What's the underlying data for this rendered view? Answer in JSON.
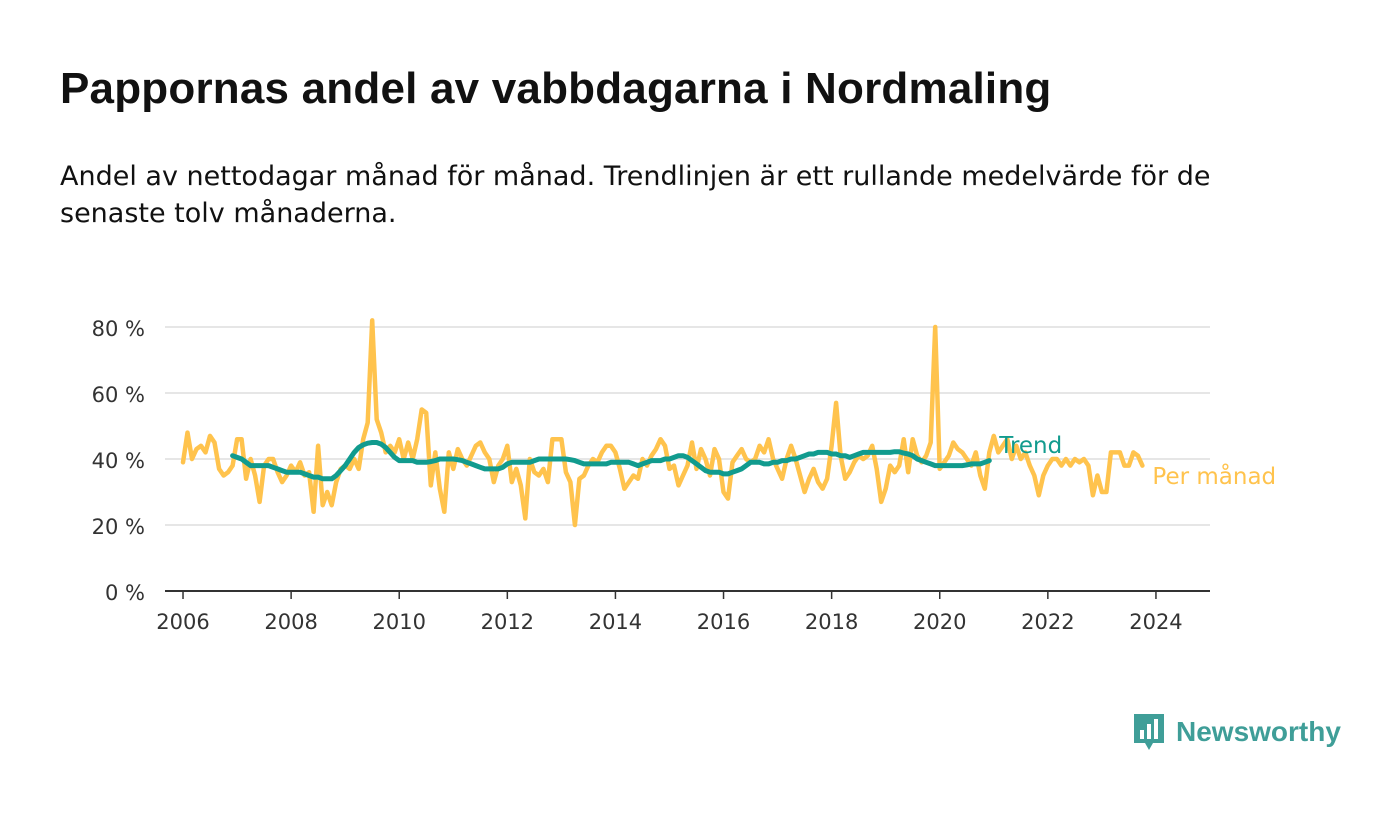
{
  "header": {
    "title": "Pappornas andel av vabbdagarna i Nordmaling",
    "subtitle": "Andel av nettodagar månad för månad. Trendlinjen är ett rullande medelvärde för de senaste tolv månaderna."
  },
  "brand": {
    "name": "Newsworthy",
    "icon": "newsworthy-logo-icon",
    "color": "#3f9e98"
  },
  "chart_data": {
    "type": "line",
    "title": "Pappornas andel av vabbdagarna i Nordmaling",
    "xlabel": "",
    "ylabel": "",
    "x_range": [
      "2005-09",
      "2025-01"
    ],
    "ylim": [
      0,
      80
    ],
    "yticks": [
      0,
      20,
      40,
      60,
      80
    ],
    "ytick_labels": [
      "0 %",
      "20 %",
      "40 %",
      "60 %",
      "80 %"
    ],
    "xticks": [
      "2006",
      "2008",
      "2010",
      "2012",
      "2014",
      "2016",
      "2018",
      "2020",
      "2022",
      "2024"
    ],
    "grid": "horizontal",
    "legend": "right-end labels",
    "series": [
      {
        "name": "Per månad",
        "color": "#ffc34d",
        "x_start": "2006-01",
        "frequency": "monthly",
        "values": [
          39,
          48,
          40,
          43,
          44,
          42,
          47,
          45,
          37,
          35,
          36,
          38,
          46,
          46,
          34,
          40,
          35,
          27,
          38,
          40,
          40,
          36,
          33,
          35,
          38,
          36,
          39,
          35,
          36,
          24,
          44,
          26,
          30,
          26,
          33,
          37,
          38,
          37,
          40,
          37,
          46,
          51,
          82,
          52,
          48,
          42,
          44,
          42,
          46,
          40,
          45,
          40,
          46,
          55,
          54,
          32,
          42,
          31,
          24,
          42,
          37,
          43,
          40,
          38,
          41,
          44,
          45,
          42,
          40,
          33,
          38,
          40,
          44,
          33,
          37,
          32,
          22,
          40,
          36,
          35,
          37,
          33,
          46,
          46,
          46,
          36,
          33,
          20,
          34,
          35,
          38,
          40,
          39,
          42,
          44,
          44,
          42,
          37,
          31,
          33,
          35,
          34,
          40,
          38,
          41,
          43,
          46,
          44,
          37,
          38,
          32,
          35,
          38,
          45,
          37,
          43,
          40,
          35,
          43,
          40,
          30,
          28,
          39,
          41,
          43,
          40,
          39,
          40,
          44,
          42,
          46,
          40,
          37,
          34,
          40,
          44,
          40,
          35,
          30,
          34,
          37,
          33,
          31,
          34,
          44,
          57,
          41,
          34,
          36,
          39,
          41,
          40,
          41,
          44,
          37,
          27,
          31,
          38,
          36,
          38,
          46,
          36,
          46,
          41,
          39,
          41,
          45,
          80,
          37,
          39,
          41,
          45,
          43,
          42,
          40,
          38,
          42,
          35,
          31,
          42,
          47,
          42,
          44,
          46,
          40,
          44,
          40,
          42,
          38,
          35,
          29,
          35,
          38,
          40,
          40,
          38,
          40,
          38,
          40,
          39,
          40,
          38,
          29,
          35,
          30,
          30,
          42,
          42,
          42,
          38,
          38,
          42,
          41,
          38
        ]
      },
      {
        "name": "Trend",
        "color": "#119b8e",
        "x_start": "2006-12",
        "frequency": "monthly",
        "values": [
          41,
          40.5,
          40,
          39,
          38,
          38,
          38,
          38,
          38,
          37.5,
          37,
          36.5,
          36,
          36,
          36,
          36,
          35.5,
          35,
          34.5,
          34.5,
          34,
          34,
          34,
          35,
          36.5,
          38,
          40,
          42,
          43.5,
          44.3,
          44.8,
          45,
          45,
          44.5,
          43.5,
          42,
          40.5,
          39.5,
          39.5,
          39.5,
          39.5,
          39,
          39,
          39,
          39.2,
          39.5,
          40,
          40,
          40,
          40,
          39.8,
          39.5,
          39,
          38.5,
          38,
          37.5,
          37,
          37,
          37,
          37,
          37.5,
          38.5,
          39,
          39,
          39,
          39,
          39,
          39.5,
          40,
          40,
          40,
          40,
          40,
          40,
          40,
          39.8,
          39.5,
          39,
          38.5,
          38.5,
          38.5,
          38.5,
          38.5,
          38.5,
          39,
          39,
          39,
          39,
          39,
          38.5,
          38,
          38.5,
          39,
          39.5,
          39.5,
          39.5,
          40,
          40,
          40.5,
          41,
          41,
          40.5,
          39.5,
          38.5,
          37.5,
          36.5,
          36,
          36,
          36,
          35.5,
          35.5,
          36,
          36.5,
          37,
          38,
          39,
          39,
          39,
          38.5,
          38.5,
          39,
          39,
          39.5,
          39.5,
          40,
          40,
          40.5,
          41,
          41.5,
          41.5,
          42,
          42,
          42,
          41.5,
          41.5,
          41,
          41,
          40.5,
          41,
          41.5,
          42,
          42,
          42,
          42,
          42,
          42,
          42,
          42.2,
          42.2,
          41.8,
          41.5,
          41,
          40,
          39.5,
          39,
          38.5,
          38,
          38,
          38,
          38,
          38,
          38,
          38,
          38.2,
          38.5,
          38.5,
          38.5,
          39,
          39.5
        ]
      }
    ]
  }
}
